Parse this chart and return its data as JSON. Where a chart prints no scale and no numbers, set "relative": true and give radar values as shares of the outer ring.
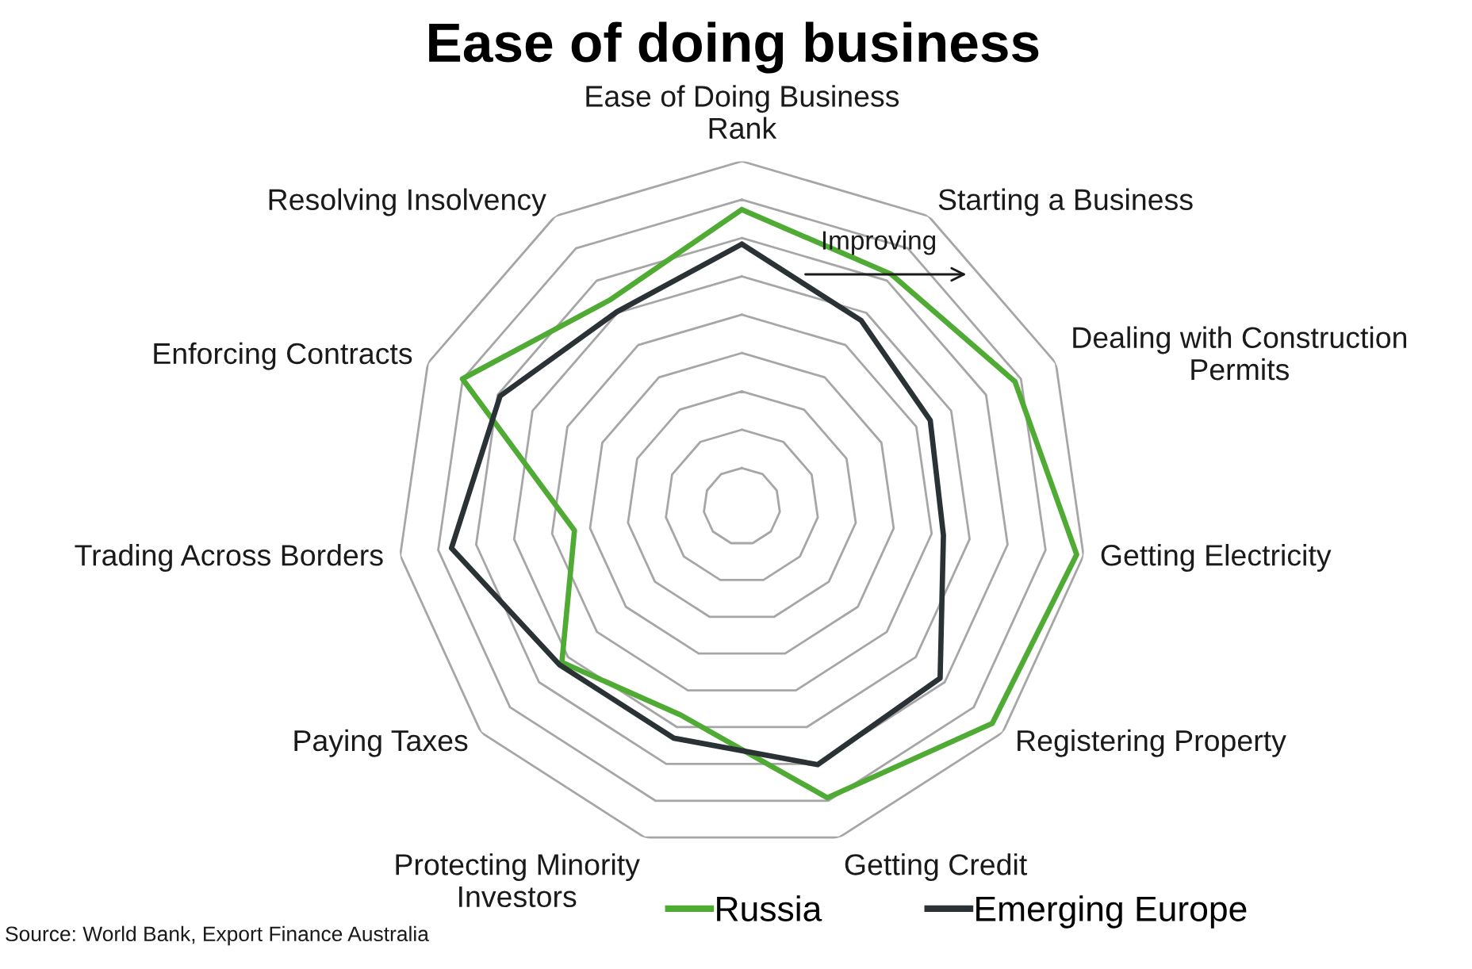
{
  "chart_data": {
    "type": "radar",
    "title": "Ease of doing business",
    "categories": [
      "Ease of Doing Business Rank",
      "Starting a Business",
      "Dealing with Construction Permits",
      "Getting Electricity",
      "Registering Property",
      "Getting Credit",
      "Protecting Minority Investors",
      "Paying Taxes",
      "Trading Across Borders",
      "Enforcing Contracts",
      "Resolving Insolvency"
    ],
    "series": [
      {
        "name": "Russia",
        "color": "#50ab35",
        "values": [
          0.86,
          0.8,
          0.87,
          0.98,
          0.96,
          0.88,
          0.63,
          0.69,
          0.49,
          0.89,
          0.71
        ]
      },
      {
        "name": "Emerging Europe",
        "color": "#2a3236",
        "values": [
          0.76,
          0.64,
          0.6,
          0.59,
          0.76,
          0.78,
          0.7,
          0.7,
          0.85,
          0.77,
          0.67
        ]
      }
    ],
    "relative": true,
    "grid": true,
    "legend": "bottom",
    "tick_labels": "x",
    "annotations": [
      "Improving",
      "Source: World Bank, Export Finance Australia"
    ]
  }
}
